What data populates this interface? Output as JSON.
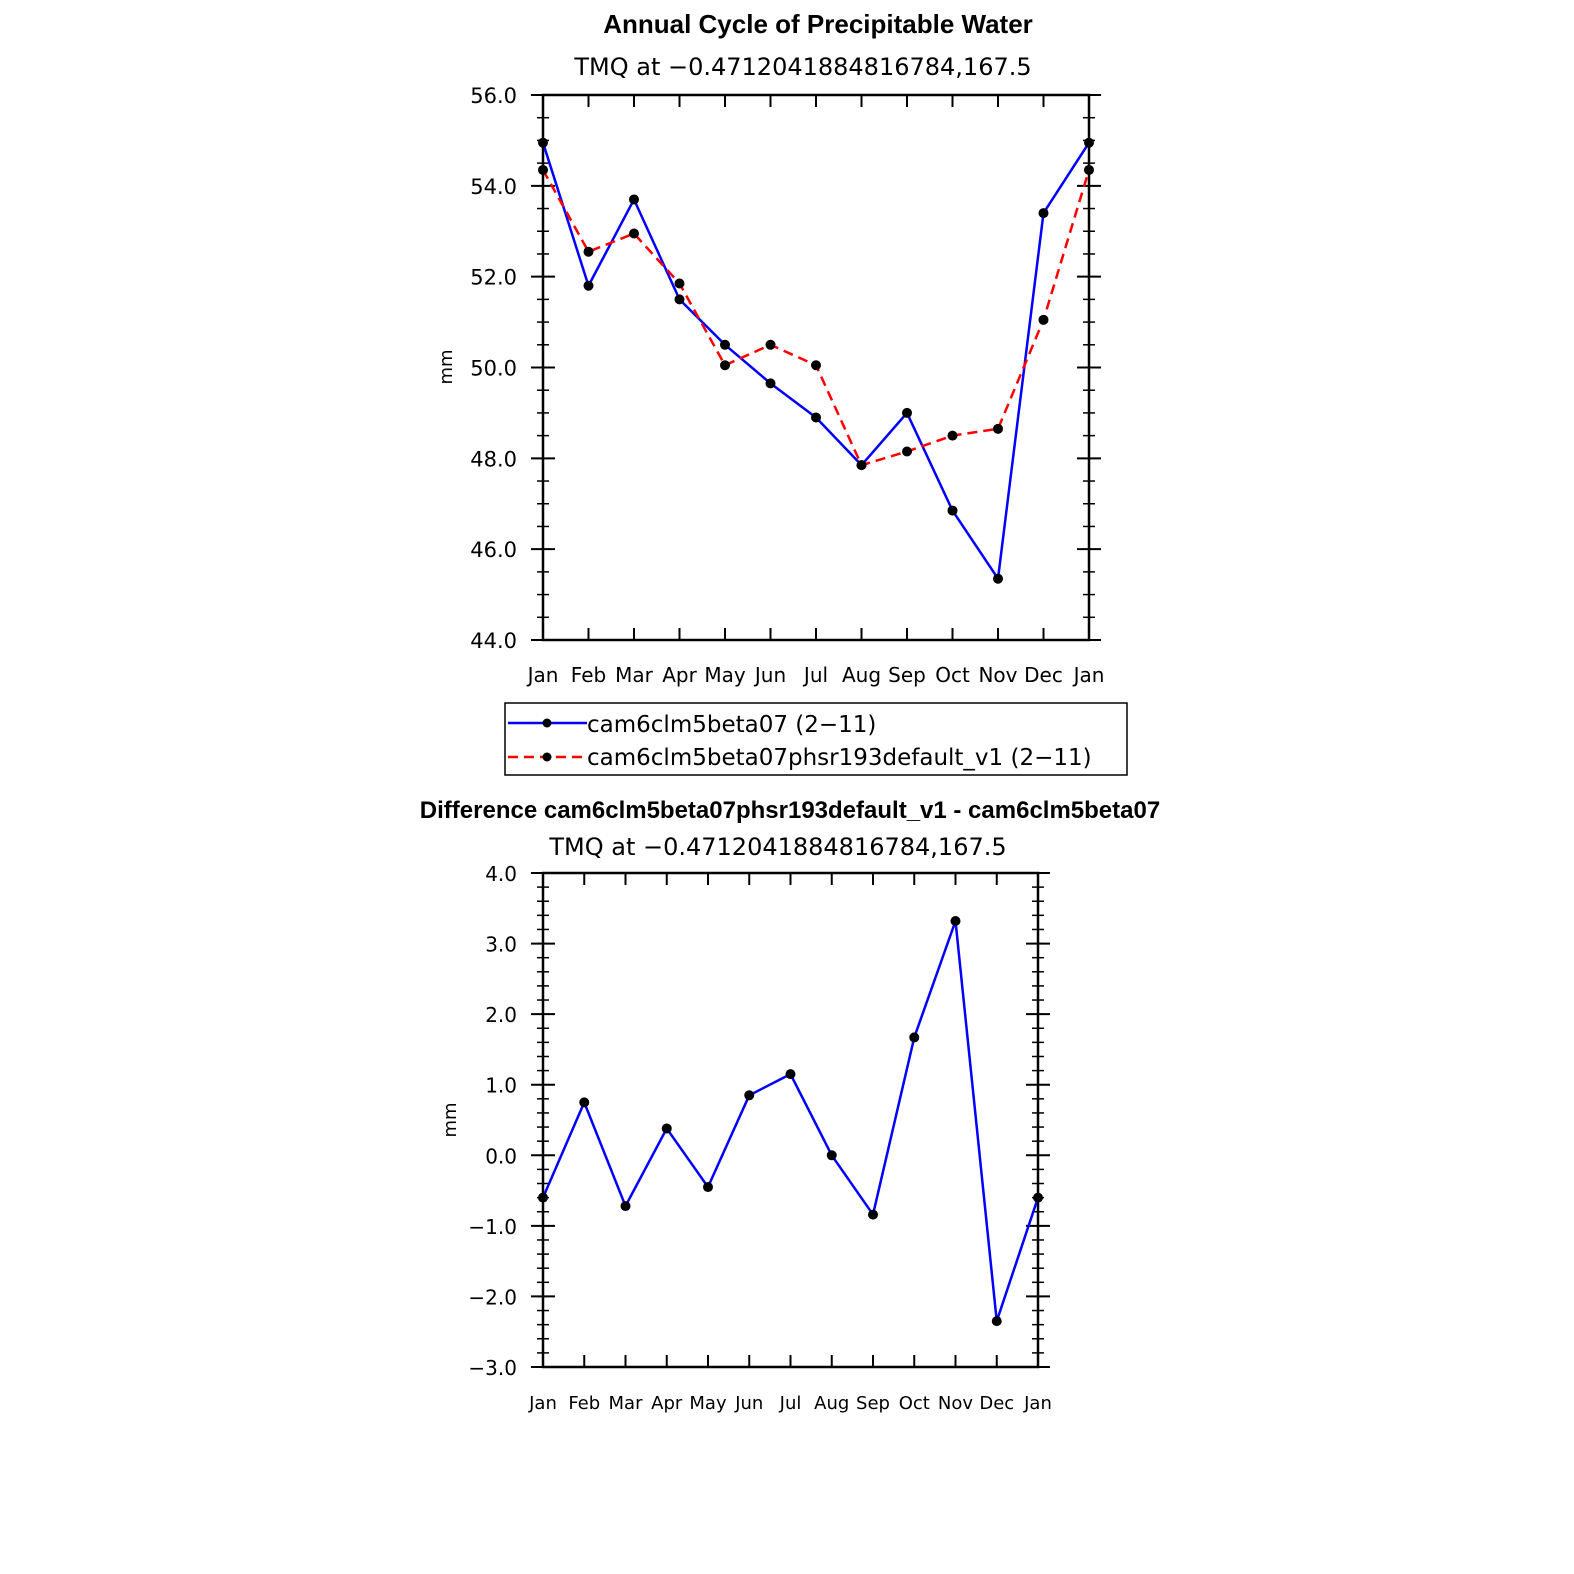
{
  "chart_data": [
    {
      "type": "line",
      "title": "Annual Cycle of Precipitable Water",
      "subtitle": "TMQ at −0.4712041884816784,167.5",
      "xlabel": "",
      "ylabel": "mm",
      "categories": [
        "Jan",
        "Feb",
        "Mar",
        "Apr",
        "May",
        "Jun",
        "Jul",
        "Aug",
        "Sep",
        "Oct",
        "Nov",
        "Dec",
        "Jan"
      ],
      "ylim": [
        44.0,
        56.0
      ],
      "yticks": [
        "44.0",
        "46.0",
        "48.0",
        "50.0",
        "52.0",
        "54.0",
        "56.0"
      ],
      "series": [
        {
          "name": "cam6clm5beta07 (2−11)",
          "color": "#0000ff",
          "dash": "solid",
          "values": [
            54.95,
            51.8,
            53.7,
            51.5,
            50.5,
            49.65,
            48.9,
            47.85,
            49.0,
            46.85,
            45.35,
            53.4,
            54.95
          ]
        },
        {
          "name": "cam6clm5beta07phsr193default_v1 (2−11)",
          "color": "#ff0000",
          "dash": "dashed",
          "values": [
            54.35,
            52.55,
            52.95,
            51.85,
            50.05,
            50.5,
            50.05,
            47.85,
            48.15,
            48.5,
            48.65,
            51.05,
            54.35
          ]
        }
      ],
      "legend_position": "below"
    },
    {
      "type": "line",
      "title": "Difference cam6clm5beta07phsr193default_v1 - cam6clm5beta07",
      "subtitle": "TMQ at −0.4712041884816784,167.5",
      "xlabel": "",
      "ylabel": "mm",
      "categories": [
        "Jan",
        "Feb",
        "Mar",
        "Apr",
        "May",
        "Jun",
        "Jul",
        "Aug",
        "Sep",
        "Oct",
        "Nov",
        "Dec",
        "Jan"
      ],
      "ylim": [
        -3.0,
        4.0
      ],
      "yticks": [
        "−3.0",
        "−2.0",
        "−1.0",
        "0.0",
        "1.0",
        "2.0",
        "3.0",
        "4.0"
      ],
      "series": [
        {
          "name": "difference",
          "color": "#0000ff",
          "dash": "solid",
          "values": [
            -0.6,
            0.75,
            -0.72,
            0.38,
            -0.45,
            0.85,
            1.15,
            0.0,
            -0.84,
            1.67,
            3.32,
            -2.35,
            -0.6
          ]
        }
      ]
    }
  ]
}
